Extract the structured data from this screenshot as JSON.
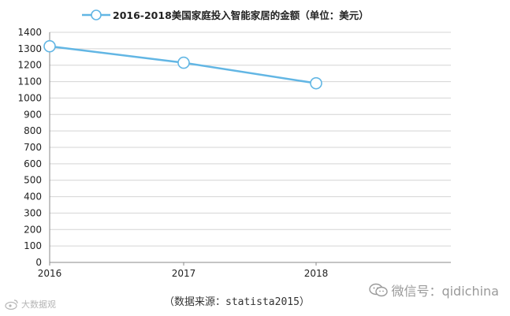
{
  "chart_data": {
    "type": "line",
    "x": [
      "2016",
      "2017",
      "2018"
    ],
    "series": [
      {
        "name": "2016-2018美国家庭投入智能家居的金额（单位：美元）",
        "values": [
          1315,
          1215,
          1090
        ]
      }
    ],
    "ylim": [
      0,
      1400
    ],
    "yticks": [
      0,
      100,
      200,
      300,
      400,
      500,
      600,
      700,
      800,
      900,
      1000,
      1100,
      1200,
      1300,
      1400
    ],
    "grid": true,
    "legend_position": "top-center",
    "line_color": "#62b6e4"
  },
  "source_note": "（数据来源：statista2015）",
  "watermark_right": "微信号：qidichina",
  "watermark_left": "大数据观"
}
